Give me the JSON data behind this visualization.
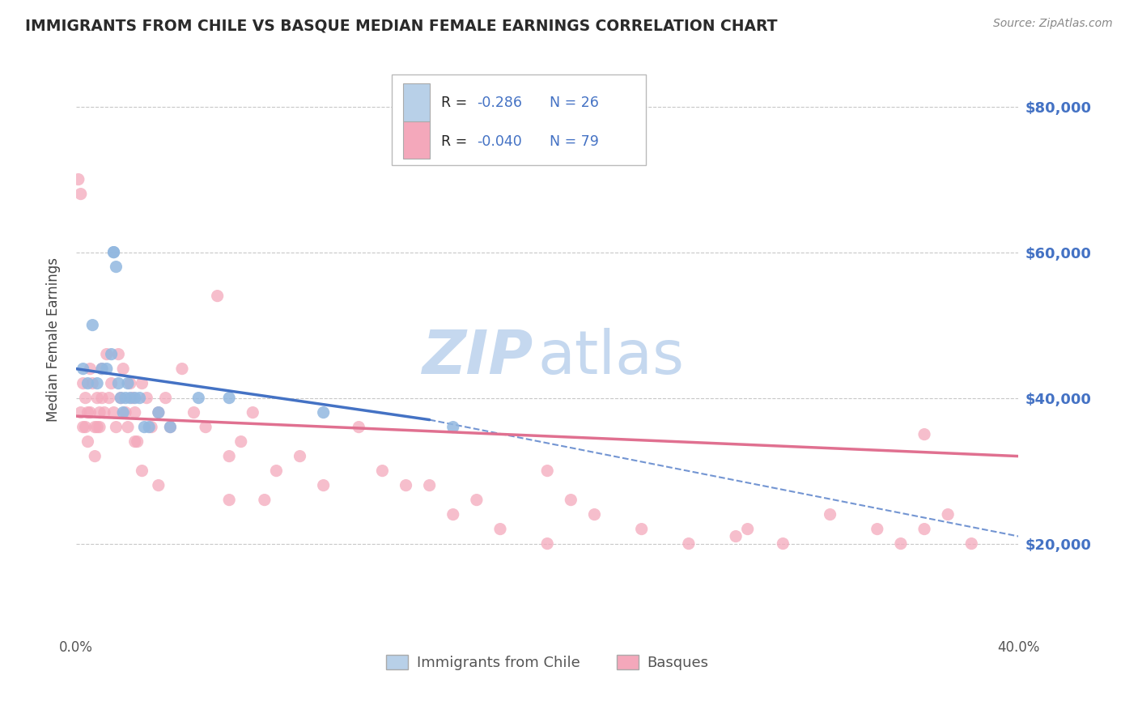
{
  "title": "IMMIGRANTS FROM CHILE VS BASQUE MEDIAN FEMALE EARNINGS CORRELATION CHART",
  "source": "Source: ZipAtlas.com",
  "ylabel": "Median Female Earnings",
  "y_ticks": [
    20000,
    40000,
    60000,
    80000
  ],
  "y_tick_labels": [
    "$20,000",
    "$40,000",
    "$60,000",
    "$80,000"
  ],
  "x_min": 0.0,
  "x_max": 40.0,
  "y_min": 8000,
  "y_max": 88000,
  "legend_r1": "R = ",
  "legend_v1": "-0.286",
  "legend_n1": "N = 26",
  "legend_r2": "R = ",
  "legend_v2": "-0.040",
  "legend_n2": "N = 79",
  "legend_label1": "Immigrants from Chile",
  "legend_label2": "Basques",
  "color_blue": "#92b8e0",
  "color_blue_light": "#b8d0e8",
  "color_pink": "#f4a8bb",
  "color_pink_line": "#e07090",
  "color_blue_line": "#4472c4",
  "color_title": "#2a2a2a",
  "color_right_labels": "#4472c4",
  "color_grid": "#c8c8c8",
  "watermark_zip_color": "#c5d8ef",
  "watermark_atlas_color": "#c5d8ef",
  "blue_points_x": [
    0.3,
    0.5,
    0.7,
    0.9,
    1.1,
    1.3,
    1.5,
    1.6,
    1.6,
    1.7,
    1.8,
    1.9,
    2.0,
    2.1,
    2.2,
    2.3,
    2.5,
    2.7,
    2.9,
    3.1,
    3.5,
    4.0,
    5.2,
    6.5,
    10.5,
    16.0
  ],
  "blue_points_y": [
    44000,
    42000,
    50000,
    42000,
    44000,
    44000,
    46000,
    60000,
    60000,
    58000,
    42000,
    40000,
    38000,
    40000,
    42000,
    40000,
    40000,
    40000,
    36000,
    36000,
    38000,
    36000,
    40000,
    40000,
    38000,
    36000
  ],
  "pink_points_x": [
    0.1,
    0.2,
    0.2,
    0.3,
    0.3,
    0.4,
    0.4,
    0.5,
    0.5,
    0.6,
    0.6,
    0.7,
    0.8,
    0.8,
    0.9,
    0.9,
    1.0,
    1.0,
    1.1,
    1.1,
    1.2,
    1.3,
    1.4,
    1.5,
    1.6,
    1.7,
    1.8,
    1.9,
    2.0,
    2.1,
    2.2,
    2.3,
    2.4,
    2.5,
    2.6,
    2.8,
    3.0,
    3.2,
    3.5,
    3.8,
    4.0,
    4.5,
    5.0,
    5.5,
    6.0,
    6.5,
    7.0,
    7.5,
    8.0,
    8.5,
    9.5,
    10.5,
    12.0,
    13.0,
    14.0,
    15.0,
    16.0,
    17.0,
    18.0,
    20.0,
    21.0,
    22.0,
    24.0,
    26.0,
    28.5,
    30.0,
    32.0,
    34.0,
    35.0,
    36.0,
    37.0,
    38.0,
    28.0,
    2.5,
    2.8,
    3.5,
    6.5,
    20.0,
    36.0
  ],
  "pink_points_y": [
    70000,
    68000,
    38000,
    42000,
    36000,
    36000,
    40000,
    38000,
    34000,
    44000,
    38000,
    42000,
    36000,
    32000,
    40000,
    36000,
    38000,
    36000,
    44000,
    40000,
    38000,
    46000,
    40000,
    42000,
    38000,
    36000,
    46000,
    40000,
    44000,
    38000,
    36000,
    42000,
    40000,
    38000,
    34000,
    42000,
    40000,
    36000,
    38000,
    40000,
    36000,
    44000,
    38000,
    36000,
    54000,
    32000,
    34000,
    38000,
    26000,
    30000,
    32000,
    28000,
    36000,
    30000,
    28000,
    28000,
    24000,
    26000,
    22000,
    30000,
    26000,
    24000,
    22000,
    20000,
    22000,
    20000,
    24000,
    22000,
    20000,
    22000,
    24000,
    20000,
    21000,
    34000,
    30000,
    28000,
    26000,
    20000,
    35000
  ],
  "blue_trend_x0": 0.0,
  "blue_trend_y0": 44000,
  "blue_trend_x1": 15.0,
  "blue_trend_y1": 37000,
  "blue_dash_x0": 15.0,
  "blue_dash_y0": 37000,
  "blue_dash_x1": 40.0,
  "blue_dash_y1": 21000,
  "pink_trend_x0": 0.0,
  "pink_trend_y0": 37500,
  "pink_trend_x1": 40.0,
  "pink_trend_y1": 32000
}
